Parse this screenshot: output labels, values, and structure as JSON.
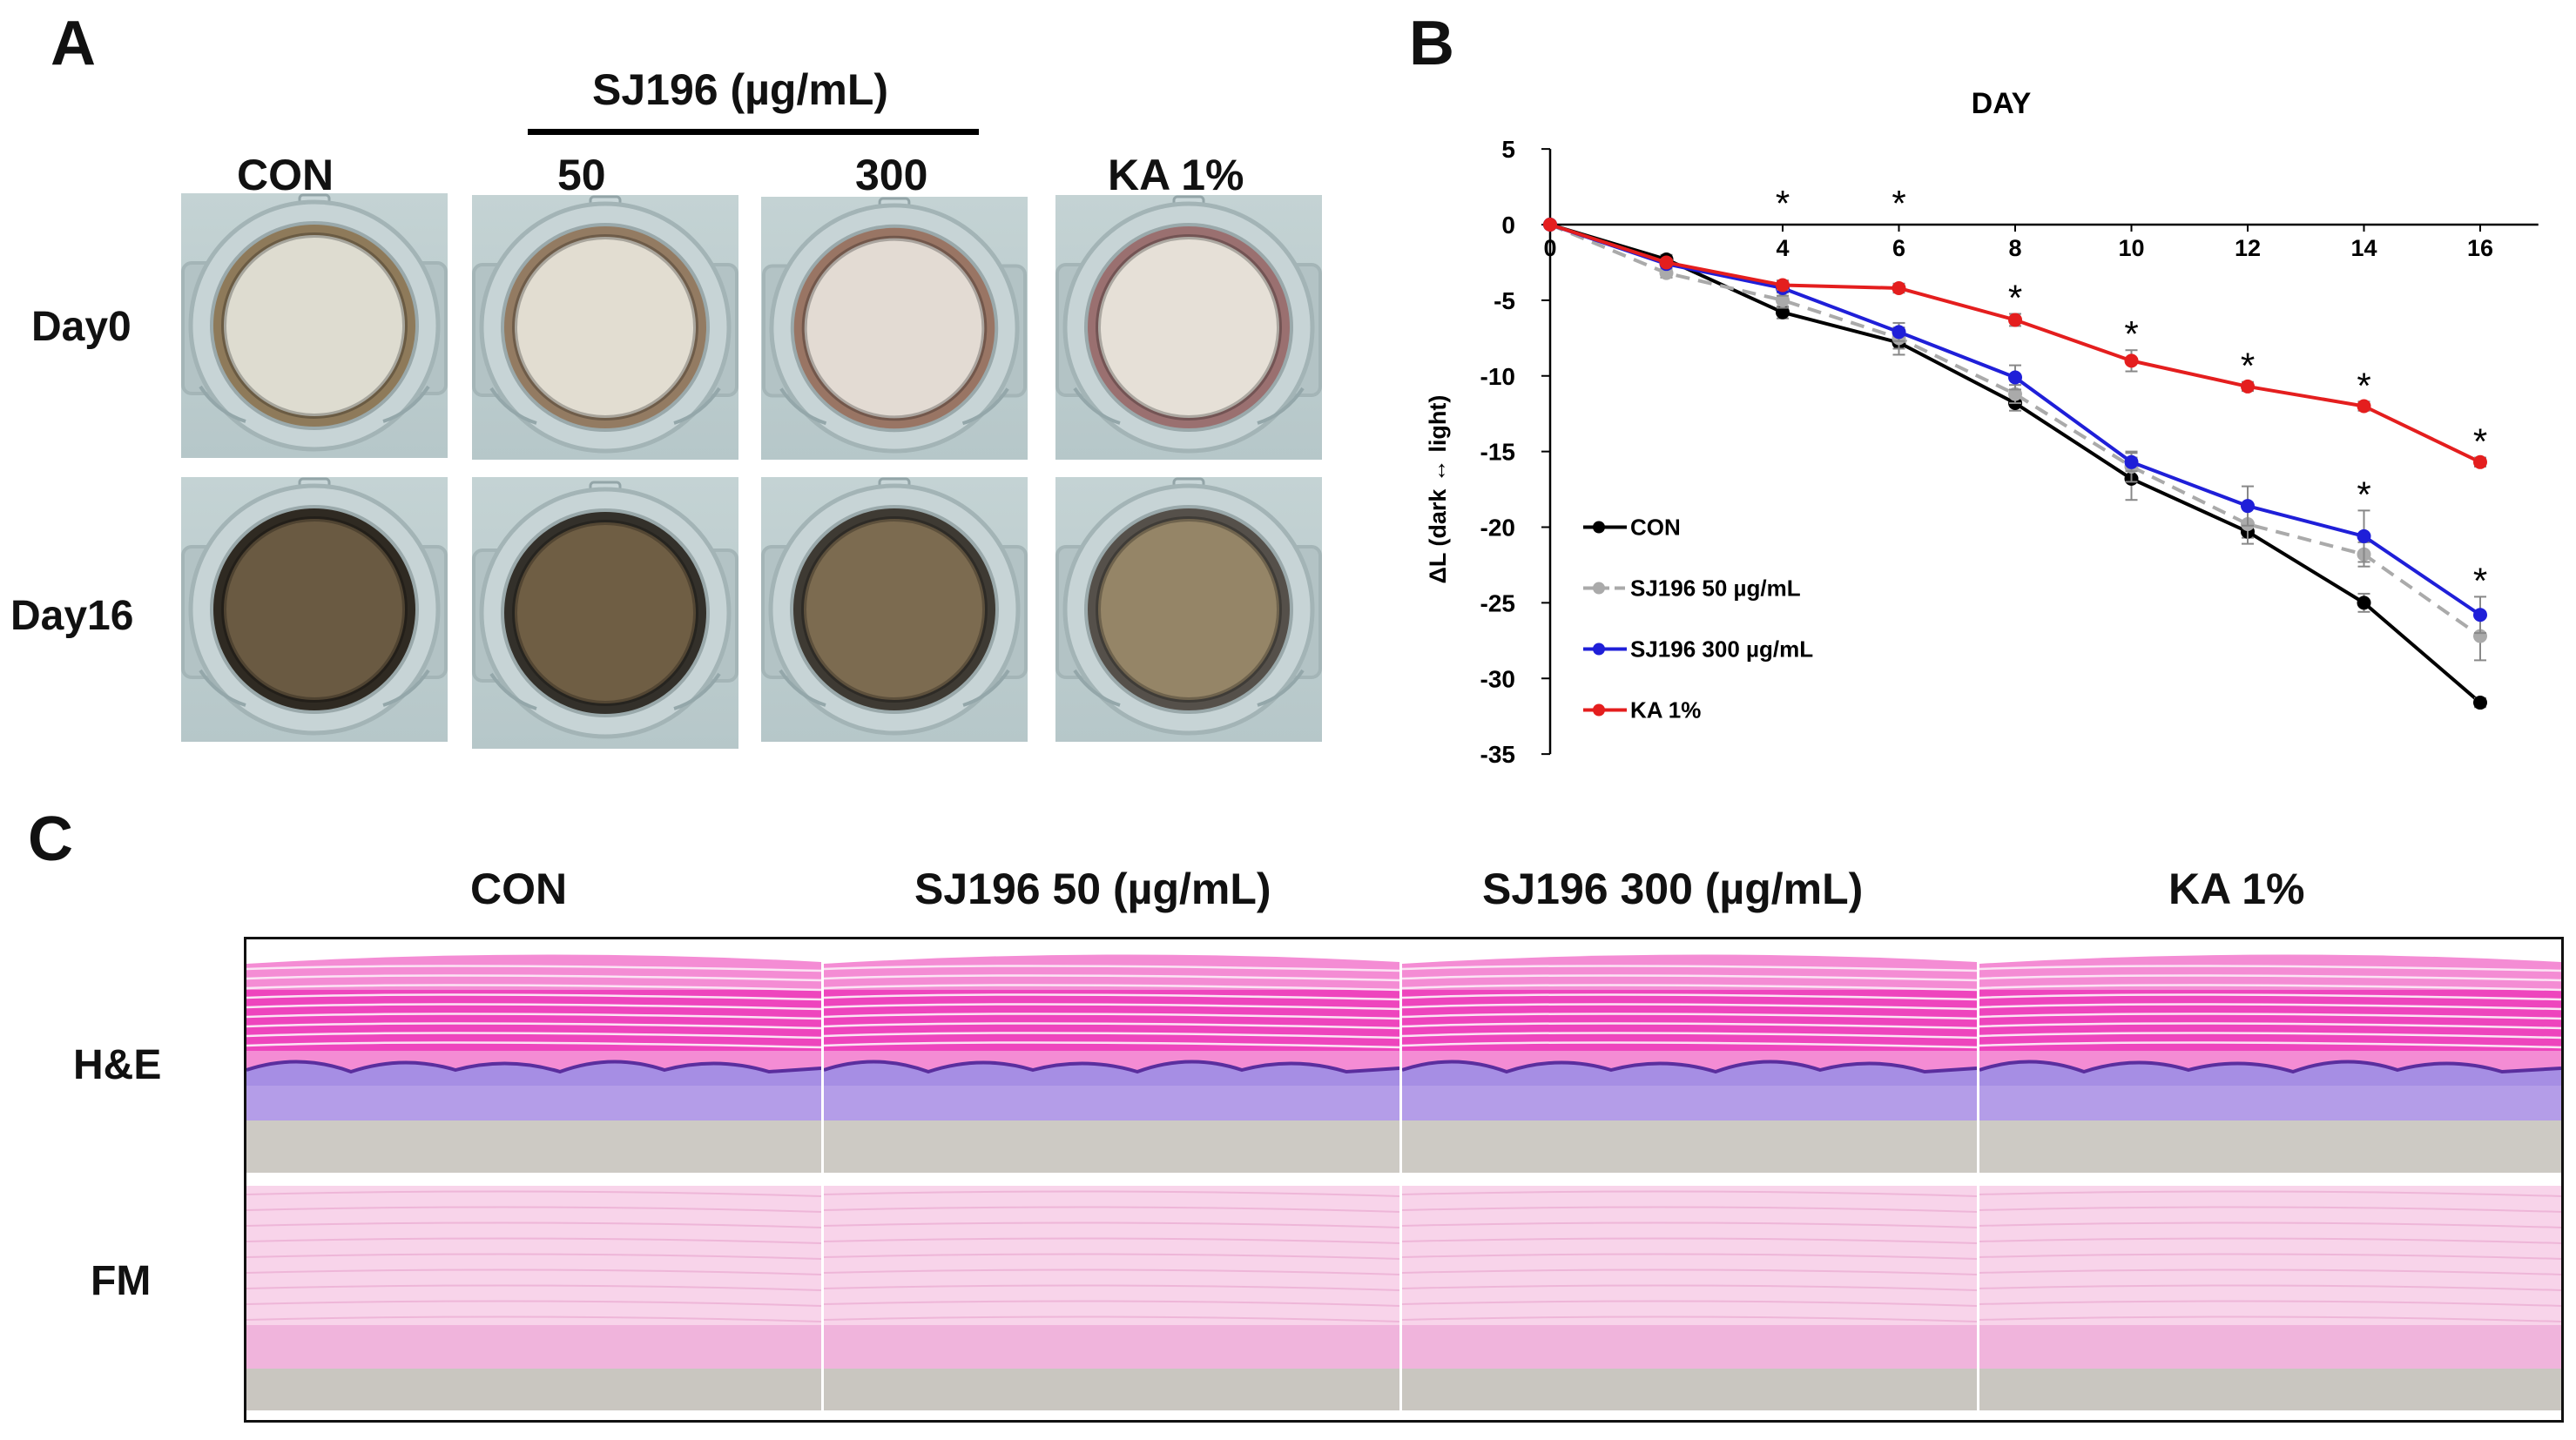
{
  "panel_a": {
    "letter": "A",
    "group_label": "SJ196 (µg/mL)",
    "columns": [
      "CON",
      "50",
      "300",
      "KA 1%"
    ],
    "rows": [
      "Day0",
      "Day16"
    ]
  },
  "panel_b": {
    "letter": "B",
    "chart_data": {
      "type": "line",
      "title": "DAY",
      "xlabel": "DAY",
      "ylabel": "ΔL (dark ↔ light)",
      "x": [
        0,
        2,
        4,
        6,
        8,
        10,
        12,
        14,
        16
      ],
      "x_ticks": [
        "0",
        "4",
        "6",
        "8",
        "10",
        "12",
        "14",
        "16"
      ],
      "y_ticks": [
        "5",
        "0",
        "-5",
        "-10",
        "-15",
        "-20",
        "-25",
        "-30",
        "-35"
      ],
      "ylim": [
        -35,
        5
      ],
      "xlim": [
        0,
        17
      ],
      "legend_position": "bottom-left",
      "series": [
        {
          "name": "CON",
          "color": "#000000",
          "dash": "solid",
          "values": [
            0,
            -2.3,
            -5.8,
            -7.8,
            -11.8,
            -16.8,
            -20.3,
            -25.0,
            -31.6
          ],
          "errors": [
            0,
            0.3,
            0.4,
            0.8,
            0.5,
            1.4,
            0.4,
            0.6,
            0.3
          ]
        },
        {
          "name": "SJ196 50 µg/mL",
          "color": "#aaaaaa",
          "dash": "dashed",
          "values": [
            0,
            -3.2,
            -5.0,
            -7.5,
            -11.2,
            -16.0,
            -19.8,
            -21.8,
            -27.2
          ],
          "errors": [
            0,
            0.3,
            0.5,
            0.7,
            0.6,
            1.0,
            1.3,
            0.8,
            1.6
          ]
        },
        {
          "name": "SJ196 300 µg/mL",
          "color": "#1f1fd8",
          "dash": "solid",
          "values": [
            0,
            -2.6,
            -4.2,
            -7.1,
            -10.1,
            -15.7,
            -18.6,
            -20.6,
            -25.8
          ],
          "errors": [
            0,
            0.3,
            0.5,
            0.6,
            0.8,
            0.6,
            1.3,
            1.7,
            1.2
          ]
        },
        {
          "name": "KA 1%",
          "color": "#e41e1e",
          "dash": "solid",
          "values": [
            0,
            -2.5,
            -4.0,
            -4.2,
            -6.3,
            -9.0,
            -10.7,
            -12.0,
            -15.7
          ],
          "errors": [
            0,
            0.2,
            0.3,
            0.3,
            0.4,
            0.7,
            0.3,
            0.3,
            0.3
          ]
        }
      ],
      "significance_marker": "*",
      "significance_days": [
        4,
        6,
        8,
        10,
        12,
        14,
        16
      ]
    }
  },
  "panel_c": {
    "letter": "C",
    "columns": [
      "CON",
      "SJ196 50 (µg/mL)",
      "SJ196 300 (µg/mL)",
      "KA 1%"
    ],
    "rows": [
      "H&E",
      "FM"
    ]
  }
}
